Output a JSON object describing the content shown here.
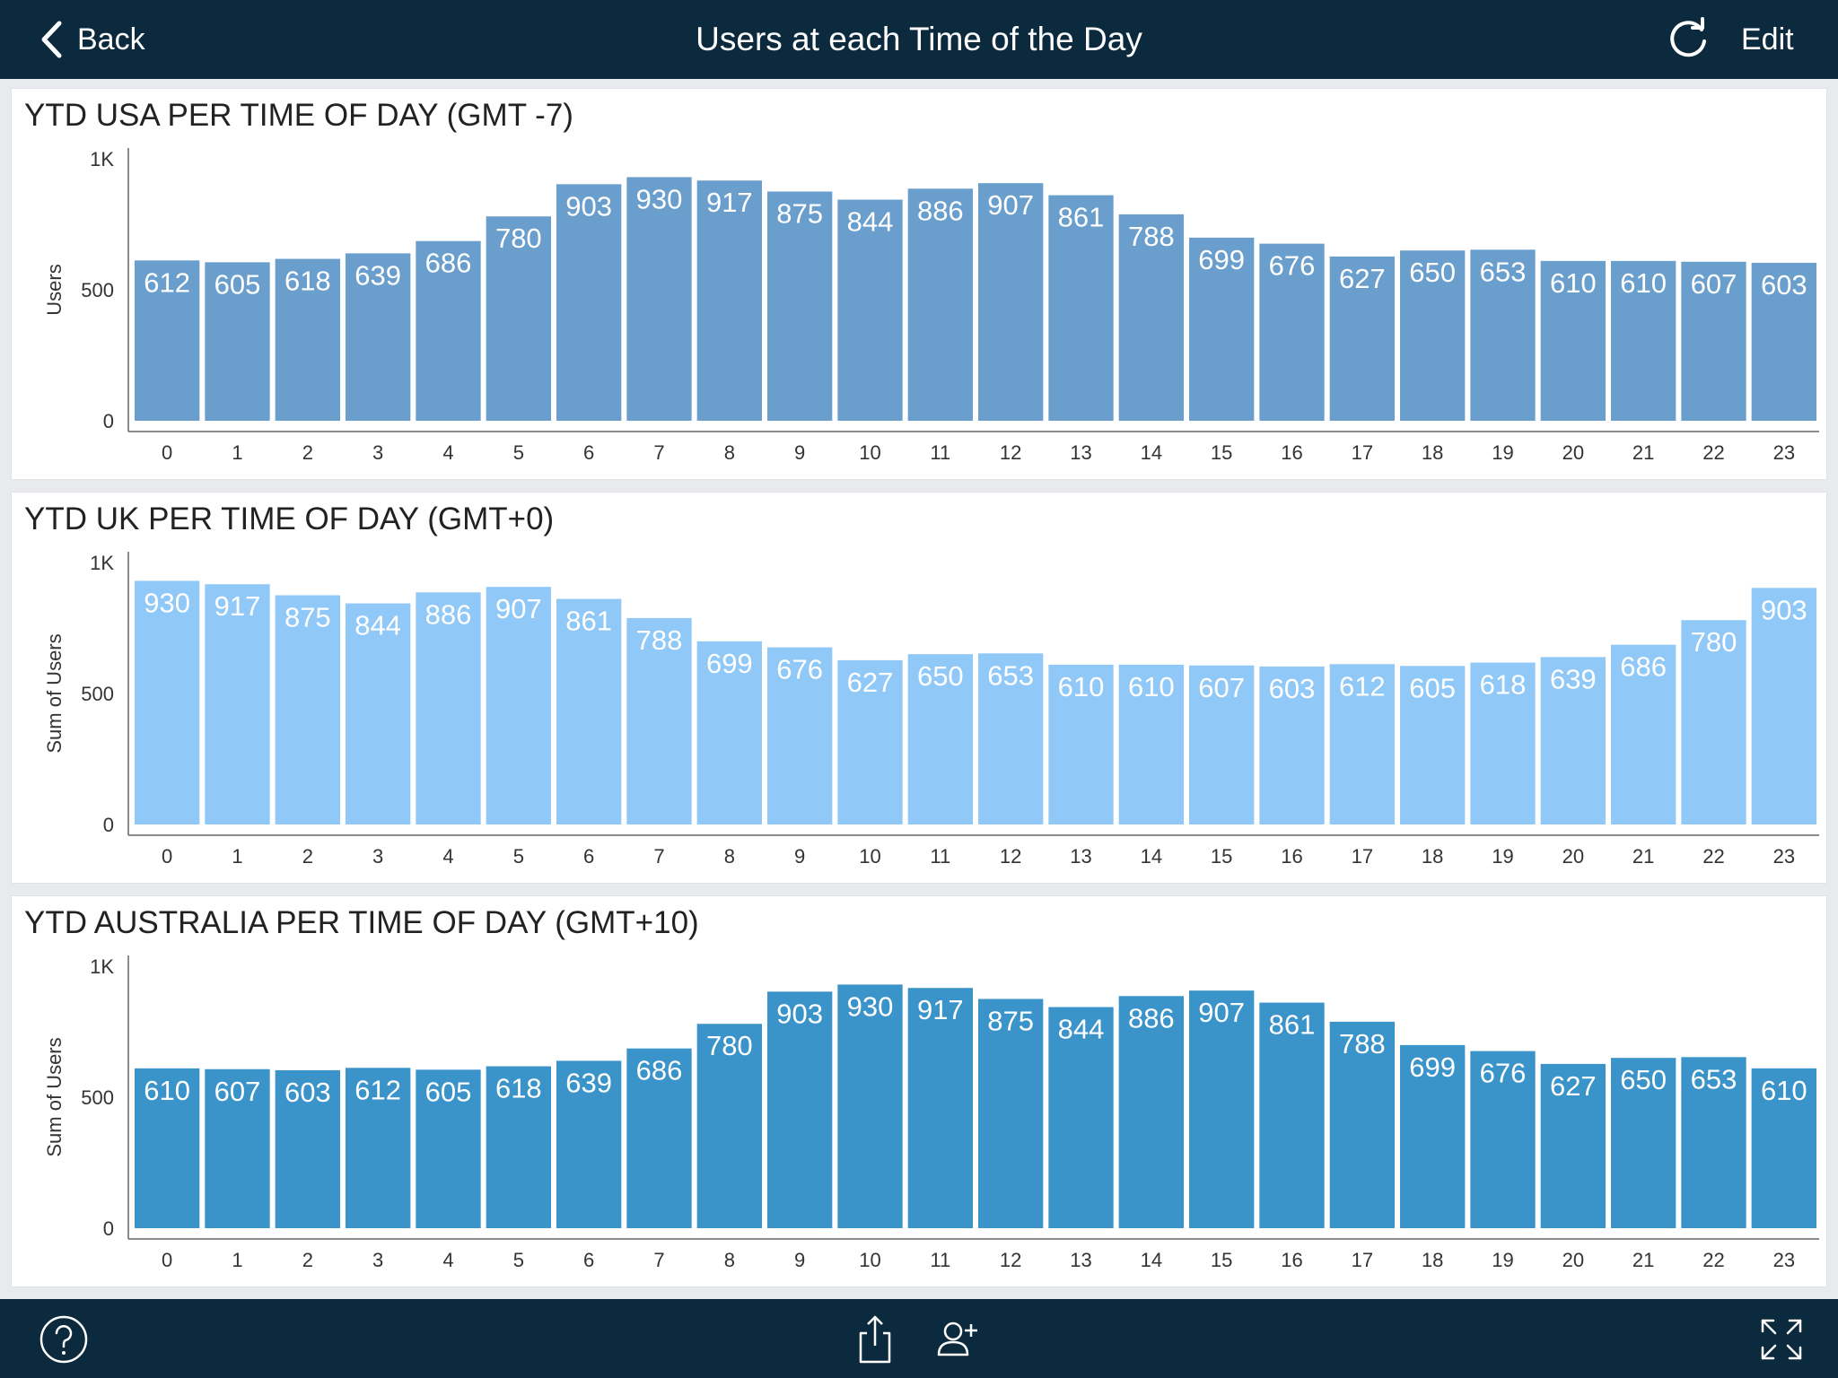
{
  "header": {
    "back_label": "Back",
    "title": "Users at each Time of the Day",
    "edit_label": "Edit",
    "refresh_icon": "refresh-icon",
    "back_icon": "chevron-left-icon"
  },
  "footer": {
    "icons": [
      "help-icon",
      "share-icon",
      "add-user-icon",
      "fullscreen-icon"
    ]
  },
  "chart_data": [
    {
      "type": "bar",
      "title": "YTD USA PER TIME OF DAY (GMT -7)",
      "xlabel": "",
      "ylabel": "Users",
      "ylim": [
        0,
        1000
      ],
      "yticks": [
        "0",
        "500",
        "1K"
      ],
      "color": "#6a9fcd",
      "categories": [
        "0",
        "1",
        "2",
        "3",
        "4",
        "5",
        "6",
        "7",
        "8",
        "9",
        "10",
        "11",
        "12",
        "13",
        "14",
        "15",
        "16",
        "17",
        "18",
        "19",
        "20",
        "21",
        "22",
        "23"
      ],
      "values": [
        612,
        605,
        618,
        639,
        686,
        780,
        903,
        930,
        917,
        875,
        844,
        886,
        907,
        861,
        788,
        699,
        676,
        627,
        650,
        653,
        610,
        610,
        607,
        603
      ]
    },
    {
      "type": "bar",
      "title": "YTD UK PER TIME OF DAY (GMT+0)",
      "xlabel": "",
      "ylabel": "Sum of Users",
      "ylim": [
        0,
        1000
      ],
      "yticks": [
        "0",
        "500",
        "1K"
      ],
      "color": "#90c8f8",
      "categories": [
        "0",
        "1",
        "2",
        "3",
        "4",
        "5",
        "6",
        "7",
        "8",
        "9",
        "10",
        "11",
        "12",
        "13",
        "14",
        "15",
        "16",
        "17",
        "18",
        "19",
        "20",
        "21",
        "22",
        "23"
      ],
      "values": [
        930,
        917,
        875,
        844,
        886,
        907,
        861,
        788,
        699,
        676,
        627,
        650,
        653,
        610,
        610,
        607,
        603,
        612,
        605,
        618,
        639,
        686,
        780,
        903
      ]
    },
    {
      "type": "bar",
      "title": "YTD AUSTRALIA PER TIME OF DAY (GMT+10)",
      "xlabel": "",
      "ylabel": "Sum of Users",
      "ylim": [
        0,
        1000
      ],
      "yticks": [
        "0",
        "500",
        "1K"
      ],
      "color": "#3a93c9",
      "categories": [
        "0",
        "1",
        "2",
        "3",
        "4",
        "5",
        "6",
        "7",
        "8",
        "9",
        "10",
        "11",
        "12",
        "13",
        "14",
        "15",
        "16",
        "17",
        "18",
        "19",
        "20",
        "21",
        "22",
        "23"
      ],
      "values": [
        610,
        607,
        603,
        612,
        605,
        618,
        639,
        686,
        780,
        903,
        930,
        917,
        875,
        844,
        886,
        907,
        861,
        788,
        699,
        676,
        627,
        650,
        653,
        610
      ]
    }
  ]
}
